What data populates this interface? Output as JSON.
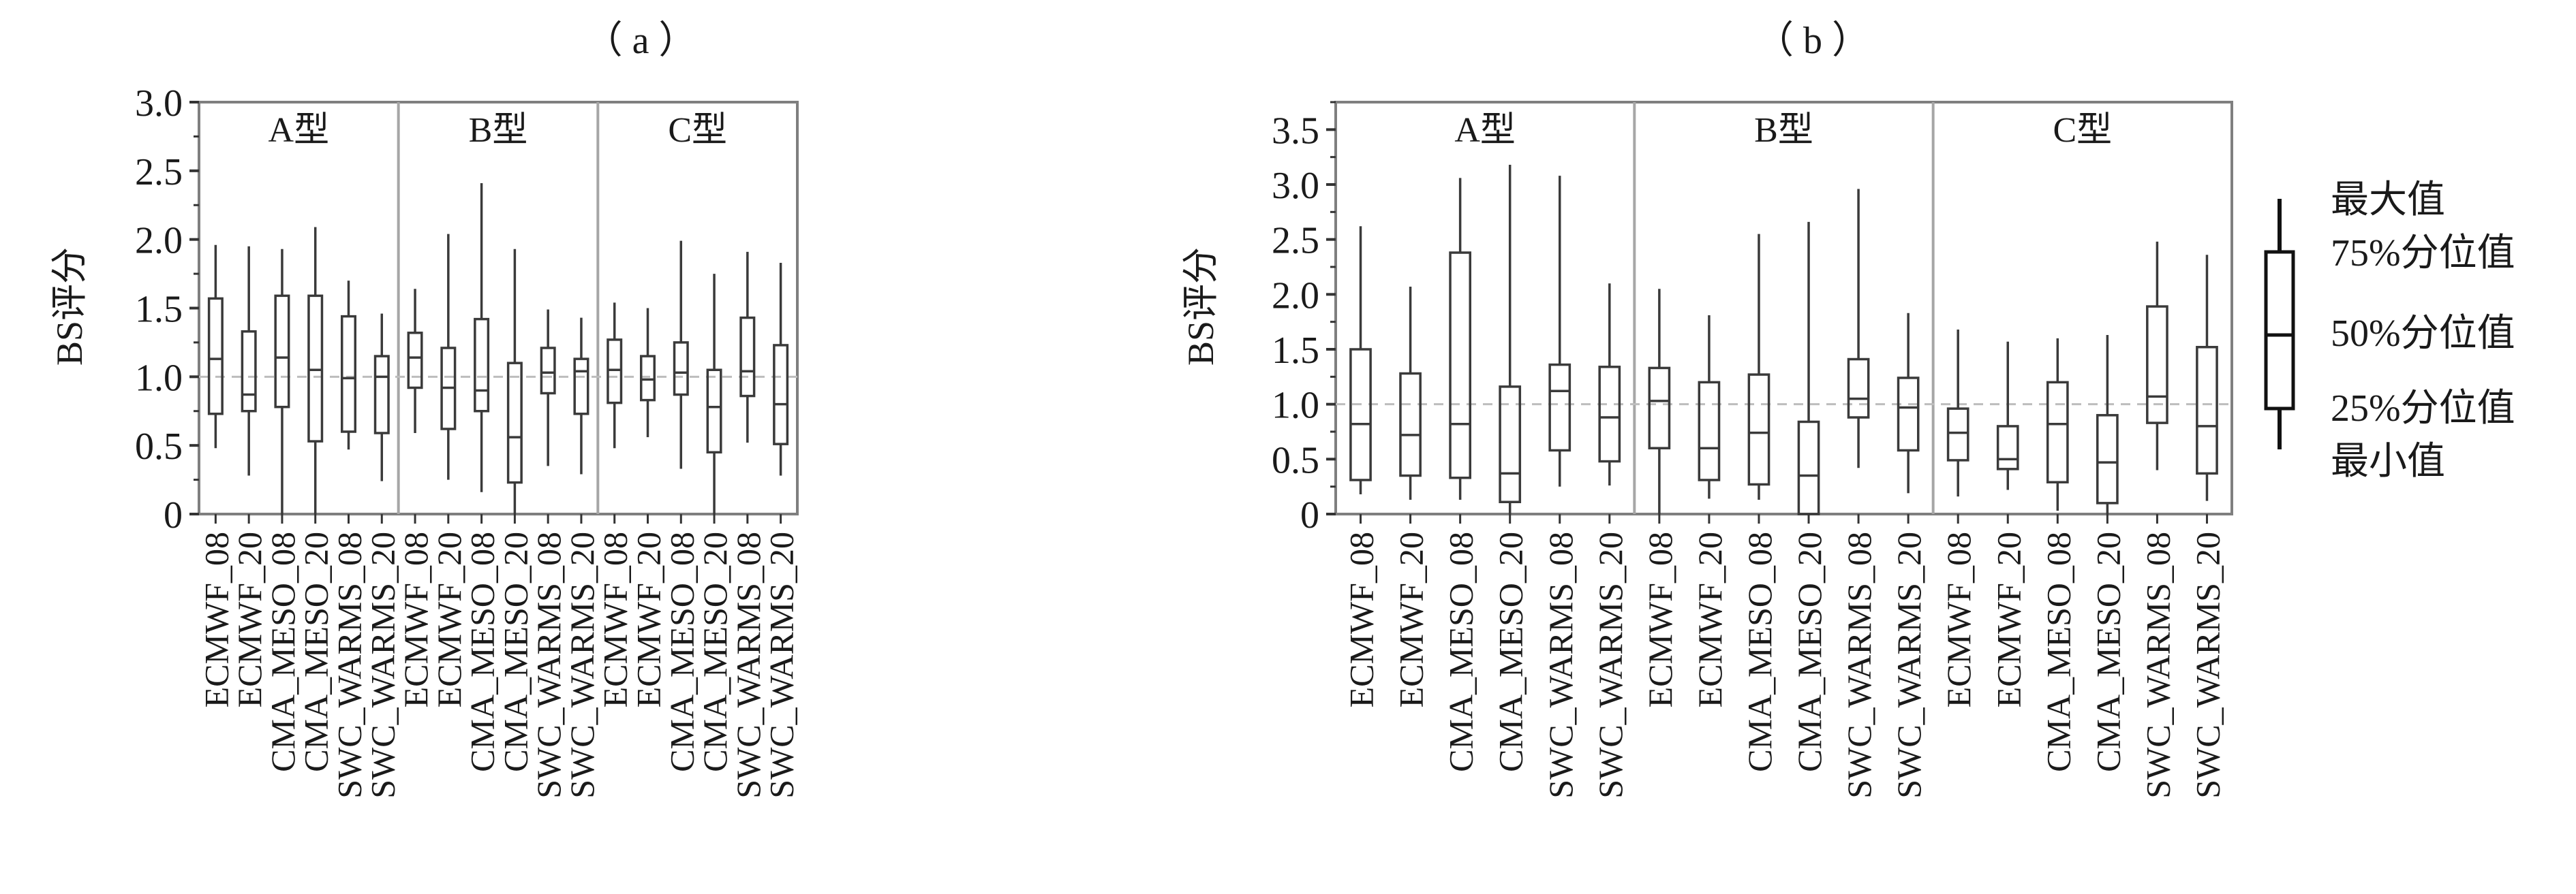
{
  "chart_data": [
    {
      "type": "box",
      "panel_label": "（ a ）",
      "ylabel": "BS评分",
      "ylim": [
        0,
        3.0
      ],
      "yticks": [
        0,
        0.5,
        1.0,
        1.5,
        2.0,
        2.5,
        3.0
      ],
      "ytick_labels": [
        "0",
        "0.5",
        "1.0",
        "1.5",
        "2.0",
        "2.5",
        "3.0"
      ],
      "reference_line": 1.0,
      "groups": [
        "A型",
        "B型",
        "C型"
      ],
      "categories": [
        "ECMWF_08",
        "ECMWF_20",
        "CMA_MESO_08",
        "CMA_MESO_20",
        "SWC_WARMS_08",
        "SWC_WARMS_20"
      ],
      "series": [
        {
          "group": "A型",
          "boxes": [
            {
              "min": 0.48,
              "q1": 0.73,
              "median": 1.13,
              "q3": 1.57,
              "max": 1.96
            },
            {
              "min": 0.28,
              "q1": 0.75,
              "median": 0.87,
              "q3": 1.33,
              "max": 1.95
            },
            {
              "min": 0.0,
              "q1": 0.78,
              "median": 1.14,
              "q3": 1.59,
              "max": 1.93
            },
            {
              "min": 0.0,
              "q1": 0.53,
              "median": 1.05,
              "q3": 1.59,
              "max": 2.09
            },
            {
              "min": 0.47,
              "q1": 0.6,
              "median": 0.99,
              "q3": 1.44,
              "max": 1.7
            },
            {
              "min": 0.24,
              "q1": 0.59,
              "median": 1.0,
              "q3": 1.15,
              "max": 1.46
            }
          ]
        },
        {
          "group": "B型",
          "boxes": [
            {
              "min": 0.59,
              "q1": 0.92,
              "median": 1.14,
              "q3": 1.32,
              "max": 1.64
            },
            {
              "min": 0.25,
              "q1": 0.62,
              "median": 0.92,
              "q3": 1.21,
              "max": 2.04
            },
            {
              "min": 0.16,
              "q1": 0.75,
              "median": 0.9,
              "q3": 1.42,
              "max": 2.41
            },
            {
              "min": 0.0,
              "q1": 0.23,
              "median": 0.56,
              "q3": 1.1,
              "max": 1.93
            },
            {
              "min": 0.35,
              "q1": 0.88,
              "median": 1.03,
              "q3": 1.21,
              "max": 1.49
            },
            {
              "min": 0.29,
              "q1": 0.73,
              "median": 1.04,
              "q3": 1.13,
              "max": 1.43
            }
          ]
        },
        {
          "group": "C型",
          "boxes": [
            {
              "min": 0.48,
              "q1": 0.81,
              "median": 1.05,
              "q3": 1.27,
              "max": 1.54
            },
            {
              "min": 0.56,
              "q1": 0.83,
              "median": 0.98,
              "q3": 1.15,
              "max": 1.5
            },
            {
              "min": 0.33,
              "q1": 0.87,
              "median": 1.03,
              "q3": 1.25,
              "max": 1.99
            },
            {
              "min": 0.0,
              "q1": 0.45,
              "median": 0.78,
              "q3": 1.05,
              "max": 1.75
            },
            {
              "min": 0.52,
              "q1": 0.86,
              "median": 1.04,
              "q3": 1.43,
              "max": 1.91
            },
            {
              "min": 0.28,
              "q1": 0.51,
              "median": 0.8,
              "q3": 1.23,
              "max": 1.83
            }
          ]
        }
      ]
    },
    {
      "type": "box",
      "panel_label": "（ b ）",
      "ylabel": "BS评分",
      "ylim": [
        0,
        3.75
      ],
      "yticks": [
        0,
        0.5,
        1.0,
        1.5,
        2.0,
        2.5,
        3.0,
        3.5
      ],
      "ytick_labels": [
        "0",
        "0.5",
        "1.0",
        "1.5",
        "2.0",
        "2.5",
        "3.0",
        "3.5"
      ],
      "reference_line": 1.0,
      "groups": [
        "A型",
        "B型",
        "C型"
      ],
      "categories": [
        "ECMWF_08",
        "ECMWF_20",
        "CMA_MESO_08",
        "CMA_MESO_20",
        "SWC_WARMS_08",
        "SWC_WARMS_20"
      ],
      "series": [
        {
          "group": "A型",
          "boxes": [
            {
              "min": 0.18,
              "q1": 0.31,
              "median": 0.82,
              "q3": 1.5,
              "max": 2.62
            },
            {
              "min": 0.13,
              "q1": 0.35,
              "median": 0.72,
              "q3": 1.28,
              "max": 2.07
            },
            {
              "min": 0.13,
              "q1": 0.33,
              "median": 0.82,
              "q3": 2.38,
              "max": 3.06
            },
            {
              "min": 0.0,
              "q1": 0.11,
              "median": 0.37,
              "q3": 1.16,
              "max": 3.18
            },
            {
              "min": 0.25,
              "q1": 0.58,
              "median": 1.12,
              "q3": 1.36,
              "max": 3.08
            },
            {
              "min": 0.26,
              "q1": 0.48,
              "median": 0.88,
              "q3": 1.34,
              "max": 2.1
            }
          ]
        },
        {
          "group": "B型",
          "boxes": [
            {
              "min": 0.0,
              "q1": 0.6,
              "median": 1.03,
              "q3": 1.33,
              "max": 2.05
            },
            {
              "min": 0.14,
              "q1": 0.31,
              "median": 0.6,
              "q3": 1.2,
              "max": 1.81
            },
            {
              "min": 0.13,
              "q1": 0.27,
              "median": 0.74,
              "q3": 1.27,
              "max": 2.55
            },
            {
              "min": 0.0,
              "q1": 0.0,
              "median": 0.35,
              "q3": 0.84,
              "max": 2.66
            },
            {
              "min": 0.42,
              "q1": 0.88,
              "median": 1.05,
              "q3": 1.41,
              "max": 2.96
            },
            {
              "min": 0.19,
              "q1": 0.58,
              "median": 0.97,
              "q3": 1.24,
              "max": 1.83
            }
          ]
        },
        {
          "group": "C型",
          "boxes": [
            {
              "min": 0.16,
              "q1": 0.49,
              "median": 0.74,
              "q3": 0.96,
              "max": 1.68
            },
            {
              "min": 0.22,
              "q1": 0.41,
              "median": 0.5,
              "q3": 0.8,
              "max": 1.57
            },
            {
              "min": 0.03,
              "q1": 0.29,
              "median": 0.82,
              "q3": 1.2,
              "max": 1.6
            },
            {
              "min": 0.0,
              "q1": 0.1,
              "median": 0.47,
              "q3": 0.9,
              "max": 1.63
            },
            {
              "min": 0.4,
              "q1": 0.83,
              "median": 1.07,
              "q3": 1.89,
              "max": 2.48
            },
            {
              "min": 0.12,
              "q1": 0.37,
              "median": 0.8,
              "q3": 1.52,
              "max": 2.36
            }
          ]
        }
      ]
    }
  ],
  "legend": {
    "labels": [
      "最大值",
      "75%分位值",
      "50%分位值",
      "25%分位值",
      "最小值"
    ]
  },
  "colors": {
    "box_stroke": "#3a3a3a",
    "frame": "#7f7f7f",
    "separator": "#a6a6a6",
    "reference_line": "#bdbdbd"
  }
}
